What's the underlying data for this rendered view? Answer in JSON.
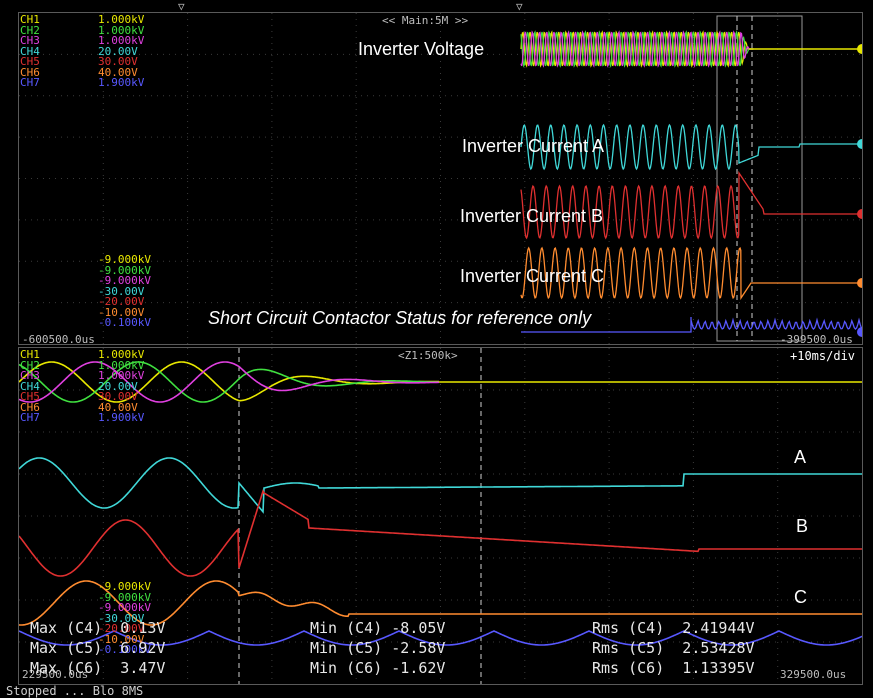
{
  "main_window": {
    "label": "<< Main:5M >>",
    "time_start": "-600500.0us",
    "time_end": "-399500.0us"
  },
  "zoom_window": {
    "label": "<Z1:500k>",
    "timebase": "+10ms/div",
    "time_start": "229500.0us",
    "time_end": "329500.0us"
  },
  "channels_top": [
    {
      "name": "CH1",
      "value": "1.000kV",
      "color": "#e8e800"
    },
    {
      "name": "CH2",
      "value": "1.000kV",
      "color": "#40e040"
    },
    {
      "name": "CH3",
      "value": "1.000kV",
      "color": "#e040e0"
    },
    {
      "name": "CH4",
      "value": "20.00V",
      "color": "#40d8d8"
    },
    {
      "name": "CH5",
      "value": "30.00V",
      "color": "#e03030"
    },
    {
      "name": "CH6",
      "value": "40.00V",
      "color": "#ff8c30"
    },
    {
      "name": "CH7",
      "value": "1.900kV",
      "color": "#5858ff"
    }
  ],
  "channels_bottom": [
    {
      "value": "-9.000kV",
      "color": "#e8e800"
    },
    {
      "value": "-9.000kV",
      "color": "#40e040"
    },
    {
      "value": "-9.000kV",
      "color": "#e040e0"
    },
    {
      "value": "-30.00V",
      "color": "#40d8d8"
    },
    {
      "value": "-20.00V",
      "color": "#e03030"
    },
    {
      "value": "-10.00V",
      "color": "#ff8c30"
    },
    {
      "value": "-0.100kV",
      "color": "#5858ff"
    }
  ],
  "annotations": {
    "inverter_voltage": "Inverter Voltage",
    "current_a": "Inverter Current A",
    "current_b": "Inverter Current B",
    "current_c": "Inverter Current C",
    "contactor_note": "Short Circuit Contactor Status for reference only",
    "label_a": "A",
    "label_b": "B",
    "label_c": "C"
  },
  "measurements": {
    "max": [
      "Max (C4)  0.13V",
      "Max (C5)  6.92V",
      "Max (C6)  3.47V"
    ],
    "min": [
      "Min (C4) -8.05V",
      "Min (C5) -2.58V",
      "Min (C6) -1.62V"
    ],
    "rms": [
      "Rms (C4)  2.41944V",
      "Rms (C5)  2.53428V",
      "Rms (C6)  1.13395V"
    ]
  },
  "status_line": "Stopped   ...   Blo 8MS"
}
